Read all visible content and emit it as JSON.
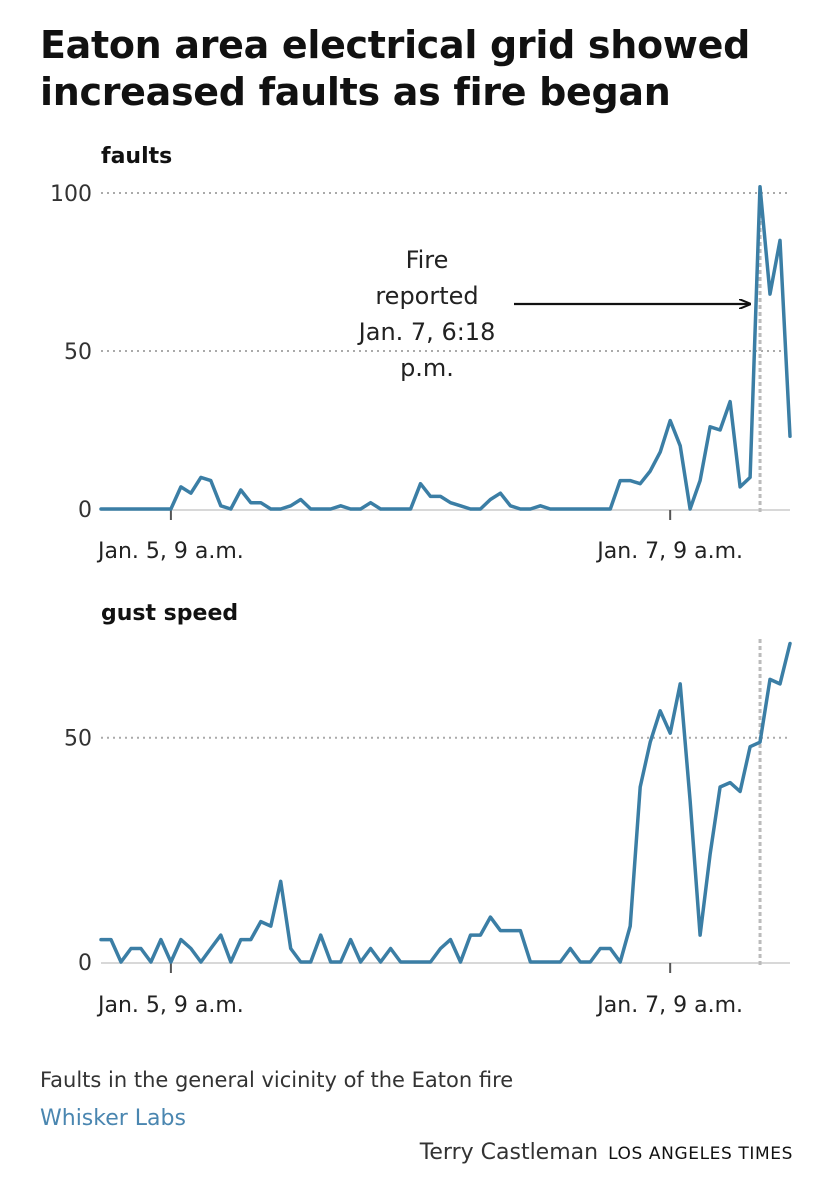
{
  "title": "Eaton area electrical grid showed increased faults as fire began",
  "note": "Faults in the general vicinity of the Eaton fire",
  "source": "Whisker Labs",
  "credit": "Terry Castleman",
  "organization": "LOS ANGELES TIMES",
  "colors": {
    "line": "#3b7ea5",
    "grid": "#aaaaaa",
    "marker": "#bbbbbb",
    "source_link": "#4a86b0"
  },
  "chart_data": [
    {
      "type": "line",
      "ylabel": "faults",
      "ylim": [
        0,
        100
      ],
      "yticks": [
        "0",
        "50",
        "100"
      ],
      "xtick_labels": [
        "Jan. 5, 9 a.m.",
        "Jan. 7, 9 a.m."
      ],
      "xtick_positions": [
        7,
        57
      ],
      "xlim": [
        0,
        69
      ],
      "grid": true,
      "fire_marker_x": 66,
      "annotation": {
        "lines": [
          "Fire",
          "reported",
          "Jan. 7, 6:18",
          "p.m."
        ]
      },
      "series": [
        {
          "x": [
            0,
            1,
            2,
            3,
            4,
            5,
            6,
            7,
            8,
            9,
            10,
            11,
            12,
            13,
            14,
            15,
            16,
            17,
            18,
            19,
            20,
            21,
            22,
            23,
            24,
            25,
            26,
            27,
            28,
            29,
            30,
            31,
            32,
            33,
            34,
            35,
            36,
            37,
            38,
            39,
            40,
            41,
            42,
            43,
            44,
            45,
            46,
            47,
            48,
            49,
            50,
            51,
            52,
            53,
            54,
            55,
            56,
            57,
            58,
            59,
            60,
            61,
            62,
            63,
            64,
            65,
            66,
            67,
            68,
            69
          ],
          "values": [
            0,
            0,
            0,
            0,
            0,
            0,
            0,
            0,
            7,
            5,
            10,
            9,
            1,
            0,
            6,
            2,
            2,
            0,
            0,
            1,
            3,
            0,
            0,
            0,
            1,
            0,
            0,
            2,
            0,
            0,
            0,
            0,
            8,
            4,
            4,
            2,
            1,
            0,
            0,
            3,
            5,
            1,
            0,
            0,
            1,
            0,
            0,
            0,
            0,
            0,
            0,
            0,
            9,
            9,
            8,
            12,
            18,
            28,
            20,
            0,
            9,
            26,
            25,
            34,
            7,
            10,
            102,
            68,
            85,
            23
          ]
        }
      ]
    },
    {
      "type": "line",
      "ylabel": "gust speed",
      "ylim": [
        0,
        72
      ],
      "yticks": [
        "0",
        "50"
      ],
      "xtick_labels": [
        "Jan. 5, 9 a.m.",
        "Jan. 7, 9 a.m."
      ],
      "xtick_positions": [
        7,
        57
      ],
      "xlim": [
        0,
        69
      ],
      "grid": true,
      "fire_marker_x": 66,
      "series": [
        {
          "x": [
            0,
            1,
            2,
            3,
            4,
            5,
            6,
            7,
            8,
            9,
            10,
            11,
            12,
            13,
            14,
            15,
            16,
            17,
            18,
            19,
            20,
            21,
            22,
            23,
            24,
            25,
            26,
            27,
            28,
            29,
            30,
            31,
            32,
            33,
            34,
            35,
            36,
            37,
            38,
            39,
            40,
            41,
            42,
            43,
            44,
            45,
            46,
            47,
            48,
            49,
            50,
            51,
            52,
            53,
            54,
            55,
            56,
            57,
            58,
            59,
            60,
            61,
            62,
            63,
            64,
            65,
            66,
            67,
            68,
            69
          ],
          "values": [
            5,
            5,
            0,
            3,
            3,
            0,
            5,
            0,
            5,
            3,
            0,
            3,
            6,
            0,
            5,
            5,
            9,
            8,
            18,
            3,
            0,
            0,
            6,
            0,
            0,
            5,
            0,
            3,
            0,
            3,
            0,
            0,
            0,
            0,
            3,
            5,
            0,
            6,
            6,
            10,
            7,
            7,
            7,
            0,
            0,
            0,
            0,
            3,
            0,
            0,
            3,
            3,
            0,
            8,
            39,
            49,
            56,
            51,
            62,
            36,
            6,
            24,
            39,
            40,
            38,
            48,
            49,
            63,
            62,
            71
          ]
        }
      ]
    }
  ]
}
